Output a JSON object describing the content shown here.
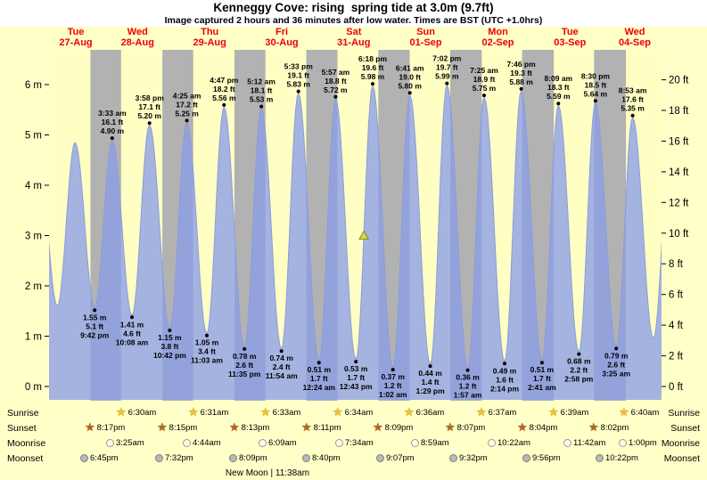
{
  "title": "Kenneggy Cove: rising  spring tide at 3.0m (9.7ft)",
  "subtitle": "Image captured 2 hours and 36 minutes after low water. Times are BST (UTC +1.0hrs)",
  "colors": {
    "day_band": "#ffffc4",
    "night_band": "#b2b2b2",
    "tide_fill": "rgba(140,158,232,0.78)",
    "tide_stroke": "#8b9cdc",
    "day_label": "#ee0000",
    "marker_fill": "#d9d947",
    "marker_stroke": "#8a8a15"
  },
  "chart_data": {
    "type": "area",
    "title": "Kenneggy Cove tide height curve",
    "time_range_hours": [
      6.5,
      210.5
    ],
    "x_axis": {
      "days": [
        {
          "weekday": "Tue",
          "date": "27-Aug"
        },
        {
          "weekday": "Wed",
          "date": "28-Aug"
        },
        {
          "weekday": "Thu",
          "date": "29-Aug"
        },
        {
          "weekday": "Fri",
          "date": "30-Aug"
        },
        {
          "weekday": "Sat",
          "date": "31-Aug"
        },
        {
          "weekday": "Sun",
          "date": "01-Sep"
        },
        {
          "weekday": "Mon",
          "date": "02-Sep"
        },
        {
          "weekday": "Tue",
          "date": "03-Sep"
        },
        {
          "weekday": "Wed",
          "date": "04-Sep"
        }
      ]
    },
    "y_axis_left": {
      "unit": "m",
      "ticks": [
        0,
        1,
        2,
        3,
        4,
        5,
        6
      ]
    },
    "y_axis_right": {
      "unit": "ft",
      "ticks": [
        0,
        2,
        4,
        6,
        8,
        10,
        12,
        14,
        16,
        18,
        20
      ]
    },
    "current_level_marker": {
      "t": 111.35,
      "m": 3.0
    },
    "tide_events": [
      {
        "t": 2.75,
        "m": 4.8,
        "type": "high",
        "labeled": false
      },
      {
        "t": 9.25,
        "m": 1.6,
        "type": "low",
        "labeled": false
      },
      {
        "t": 15.17,
        "m": 4.85,
        "type": "high",
        "labeled": false
      },
      {
        "t": 21.7,
        "m": 1.55,
        "type": "low",
        "labeled": true,
        "m_label": "1.55 m",
        "ft_label": "5.1 ft",
        "time": "9:42 pm"
      },
      {
        "t": 27.55,
        "m": 4.9,
        "type": "high",
        "labeled": true,
        "time": "3:33 am",
        "ft_label": "16.1 ft",
        "m_label": "4.90 m"
      },
      {
        "t": 34.13,
        "m": 1.41,
        "type": "low",
        "labeled": true,
        "m_label": "1.41 m",
        "ft_label": "4.6 ft",
        "time": "10:08 am"
      },
      {
        "t": 39.97,
        "m": 5.2,
        "type": "high",
        "labeled": true,
        "time": "3:58 pm",
        "ft_label": "17.1 ft",
        "m_label": "5.20 m"
      },
      {
        "t": 46.7,
        "m": 1.15,
        "type": "low",
        "labeled": true,
        "m_label": "1.15 m",
        "ft_label": "3.8 ft",
        "time": "10:42 pm"
      },
      {
        "t": 52.42,
        "m": 5.25,
        "type": "high",
        "labeled": true,
        "time": "4:25 am",
        "ft_label": "17.2 ft",
        "m_label": "5.25 m"
      },
      {
        "t": 59.05,
        "m": 1.05,
        "type": "low",
        "labeled": true,
        "m_label": "1.05 m",
        "ft_label": "3.4 ft",
        "time": "11:03 am"
      },
      {
        "t": 64.78,
        "m": 5.56,
        "type": "high",
        "labeled": true,
        "time": "4:47 pm",
        "ft_label": "18.2 ft",
        "m_label": "5.56 m"
      },
      {
        "t": 71.58,
        "m": 0.78,
        "type": "low",
        "labeled": true,
        "m_label": "0.78 m",
        "ft_label": "2.6 ft",
        "time": "11:35 pm"
      },
      {
        "t": 77.2,
        "m": 5.53,
        "type": "high",
        "labeled": true,
        "time": "5:12 am",
        "ft_label": "18.1 ft",
        "m_label": "5.53 m"
      },
      {
        "t": 83.9,
        "m": 0.74,
        "type": "low",
        "labeled": true,
        "m_label": "0.74 m",
        "ft_label": "2.4 ft",
        "time": "11:54 am"
      },
      {
        "t": 89.55,
        "m": 5.83,
        "type": "high",
        "labeled": true,
        "time": "5:33 pm",
        "ft_label": "19.1 ft",
        "m_label": "5.83 m"
      },
      {
        "t": 96.4,
        "m": 0.51,
        "type": "low",
        "labeled": true,
        "m_label": "0.51 m",
        "ft_label": "1.7 ft",
        "time": "12:24 am"
      },
      {
        "t": 101.95,
        "m": 5.72,
        "type": "high",
        "labeled": true,
        "time": "5:57 am",
        "ft_label": "18.8 ft",
        "m_label": "5.72 m"
      },
      {
        "t": 108.72,
        "m": 0.53,
        "type": "low",
        "labeled": true,
        "m_label": "0.53 m",
        "ft_label": "1.7 ft",
        "time": "12:43 pm"
      },
      {
        "t": 114.3,
        "m": 5.98,
        "type": "high",
        "labeled": true,
        "time": "6:18 pm",
        "ft_label": "19.6 ft",
        "m_label": "5.98 m"
      },
      {
        "t": 121.03,
        "m": 0.37,
        "type": "low",
        "labeled": true,
        "m_label": "0.37 m",
        "ft_label": "1.2 ft",
        "time": "1:02 am"
      },
      {
        "t": 126.68,
        "m": 5.8,
        "type": "high",
        "labeled": true,
        "time": "6:41 am",
        "ft_label": "19.0 ft",
        "m_label": "5.80 m"
      },
      {
        "t": 133.48,
        "m": 0.44,
        "type": "low",
        "labeled": true,
        "m_label": "0.44 m",
        "ft_label": "1.4 ft",
        "time": "1:29 pm"
      },
      {
        "t": 139.03,
        "m": 5.99,
        "type": "high",
        "labeled": true,
        "time": "7:02 pm",
        "ft_label": "19.7 ft",
        "m_label": "5.99 m"
      },
      {
        "t": 145.95,
        "m": 0.36,
        "type": "low",
        "labeled": true,
        "m_label": "0.36 m",
        "ft_label": "1.2 ft",
        "time": "1:57 am"
      },
      {
        "t": 151.42,
        "m": 5.75,
        "type": "high",
        "labeled": true,
        "time": "7:25 am",
        "ft_label": "18.9 ft",
        "m_label": "5.75 m"
      },
      {
        "t": 158.23,
        "m": 0.49,
        "type": "low",
        "labeled": true,
        "m_label": "0.49 m",
        "ft_label": "1.6 ft",
        "time": "2:14 pm"
      },
      {
        "t": 163.77,
        "m": 5.88,
        "type": "high",
        "labeled": true,
        "time": "7:46 pm",
        "ft_label": "19.3 ft",
        "m_label": "5.88 m"
      },
      {
        "t": 170.68,
        "m": 0.51,
        "type": "low",
        "labeled": true,
        "m_label": "0.51 m",
        "ft_label": "1.7 ft",
        "time": "2:41 am"
      },
      {
        "t": 176.15,
        "m": 5.59,
        "type": "high",
        "labeled": true,
        "time": "8:09 am",
        "ft_label": "18.3 ft",
        "m_label": "5.59 m"
      },
      {
        "t": 182.97,
        "m": 0.68,
        "type": "low",
        "labeled": true,
        "m_label": "0.68 m",
        "ft_label": "2.2 ft",
        "time": "2:58 pm"
      },
      {
        "t": 188.5,
        "m": 5.64,
        "type": "high",
        "labeled": true,
        "time": "8:30 pm",
        "ft_label": "18.5 ft",
        "m_label": "5.64 m"
      },
      {
        "t": 195.42,
        "m": 0.79,
        "type": "low",
        "labeled": true,
        "m_label": "0.79 m",
        "ft_label": "2.6 ft",
        "time": "3:25 am"
      },
      {
        "t": 200.88,
        "m": 5.35,
        "type": "high",
        "labeled": true,
        "time": "8:53 am",
        "ft_label": "17.6 ft",
        "m_label": "5.35 m"
      },
      {
        "t": 207.8,
        "m": 0.95,
        "type": "low",
        "labeled": false
      },
      {
        "t": 213.7,
        "m": 5.1,
        "type": "high",
        "labeled": false
      }
    ]
  },
  "astro": {
    "new_moon_label": "New Moon | 11:38am",
    "rows": [
      {
        "name": "sunrise",
        "label": "Sunrise",
        "icon": "star",
        "entries": [
          {
            "time": "6:30am",
            "t": 30.5
          },
          {
            "time": "6:31am",
            "t": 54.52
          },
          {
            "time": "6:33am",
            "t": 78.55
          },
          {
            "time": "6:34am",
            "t": 102.57
          },
          {
            "time": "6:36am",
            "t": 126.6
          },
          {
            "time": "6:37am",
            "t": 150.62
          },
          {
            "time": "6:39am",
            "t": 174.65
          },
          {
            "time": "6:40am",
            "t": 198.67
          }
        ]
      },
      {
        "name": "sunset",
        "label": "Sunset",
        "icon": "star",
        "entries": [
          {
            "time": "8:17pm",
            "t": 20.28
          },
          {
            "time": "8:15pm",
            "t": 44.25
          },
          {
            "time": "8:13pm",
            "t": 68.22
          },
          {
            "time": "8:11pm",
            "t": 92.18
          },
          {
            "time": "8:09pm",
            "t": 116.15
          },
          {
            "time": "8:07pm",
            "t": 140.12
          },
          {
            "time": "8:04pm",
            "t": 164.07
          },
          {
            "time": "8:02pm",
            "t": 188.03
          }
        ]
      },
      {
        "name": "moonrise",
        "label": "Moonrise",
        "icon": "circle",
        "entries": [
          {
            "time": "3:25am",
            "t": 27.42
          },
          {
            "time": "4:44am",
            "t": 52.73
          },
          {
            "time": "6:09am",
            "t": 78.15
          },
          {
            "time": "7:34am",
            "t": 103.57
          },
          {
            "time": "8:59am",
            "t": 128.98
          },
          {
            "time": "10:22am",
            "t": 154.37
          },
          {
            "time": "11:42am",
            "t": 179.7
          },
          {
            "time": "1:00pm",
            "t": 205.0
          }
        ]
      },
      {
        "name": "moonset",
        "label": "Moonset",
        "icon": "circle",
        "entries": [
          {
            "time": "6:45pm",
            "t": 18.75
          },
          {
            "time": "7:32pm",
            "t": 43.53
          },
          {
            "time": "8:09pm",
            "t": 68.15
          },
          {
            "time": "8:40pm",
            "t": 92.67
          },
          {
            "time": "9:07pm",
            "t": 117.12
          },
          {
            "time": "9:32pm",
            "t": 141.53
          },
          {
            "time": "9:56pm",
            "t": 165.93
          },
          {
            "time": "10:22pm",
            "t": 190.37
          }
        ]
      }
    ]
  }
}
